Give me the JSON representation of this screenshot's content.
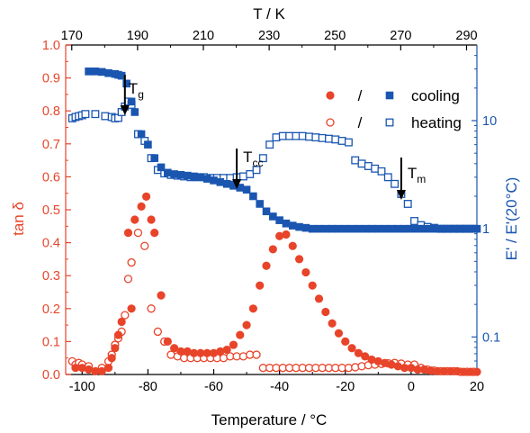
{
  "chart_data": {
    "type": "scatter",
    "x_axis": {
      "label": "Temperature / °C",
      "range": [
        -105,
        20
      ],
      "ticks": [
        -100,
        -80,
        -60,
        -40,
        -20,
        0,
        20
      ],
      "tick_labels": [
        "-100",
        "-80",
        "-60",
        "-40",
        "-20",
        "0",
        "20"
      ]
    },
    "top_axis": {
      "label": "T / K",
      "ticks": [
        170,
        190,
        210,
        230,
        250,
        270,
        290
      ],
      "tick_labels": [
        "170",
        "190",
        "210",
        "230",
        "250",
        "270",
        "290"
      ]
    },
    "left_axis": {
      "label": "tan δ",
      "range": [
        0,
        1.0
      ],
      "ticks": [
        0,
        0.1,
        0.2,
        0.3,
        0.4,
        0.5,
        0.6,
        0.7,
        0.8,
        0.9,
        1.0
      ],
      "tick_labels": [
        "0.0",
        "0.1",
        "0.2",
        "0.3",
        "0.4",
        "0.5",
        "0.6",
        "0.7",
        "0.8",
        "0.9",
        "1.0"
      ],
      "color": "#e8442a"
    },
    "right_axis": {
      "label": "E' / E'(20°C)",
      "scale": "log",
      "range": [
        0.045,
        50
      ],
      "ticks": [
        0.1,
        1,
        10
      ],
      "tick_labels": [
        "0.1",
        "1",
        "10"
      ],
      "color": "#1a56b0"
    },
    "legend": {
      "placement": "top-right",
      "separator": "/",
      "entries": [
        "cooling",
        "heating"
      ]
    },
    "annotations": [
      {
        "base": "T",
        "sub": "g",
        "x": -87
      },
      {
        "base": "T",
        "sub": "cc",
        "x": -53
      },
      {
        "base": "T",
        "sub": "m",
        "x": -3
      }
    ],
    "series": [
      {
        "axis": "left",
        "marker": "filled-circle",
        "color": "#e8442a",
        "points": [
          [
            -102,
            0.02
          ],
          [
            -100,
            0.02
          ],
          [
            -98,
            0.015
          ],
          [
            -96,
            0.01
          ],
          [
            -94,
            0.01
          ],
          [
            -92,
            0.02
          ],
          [
            -91,
            0.05
          ],
          [
            -90,
            0.08
          ],
          [
            -89,
            0.12
          ],
          [
            -88,
            0.16
          ],
          [
            -86,
            0.43
          ],
          [
            -85,
            0.2
          ],
          [
            -84,
            0.47
          ],
          [
            -82,
            0.51
          ],
          [
            -80.5,
            0.54
          ],
          [
            -79,
            0.47
          ],
          [
            -78,
            0.43
          ],
          [
            -76,
            0.24
          ],
          [
            -74,
            0.1
          ],
          [
            -72,
            0.08
          ],
          [
            -70,
            0.07
          ],
          [
            -68,
            0.07
          ],
          [
            -66,
            0.065
          ],
          [
            -64,
            0.065
          ],
          [
            -62,
            0.065
          ],
          [
            -60,
            0.065
          ],
          [
            -58,
            0.07
          ],
          [
            -56,
            0.075
          ],
          [
            -54,
            0.09
          ],
          [
            -52,
            0.12
          ],
          [
            -50,
            0.15
          ],
          [
            -48,
            0.2
          ],
          [
            -46,
            0.27
          ],
          [
            -44,
            0.33
          ],
          [
            -42,
            0.38
          ],
          [
            -40,
            0.42
          ],
          [
            -38,
            0.425
          ],
          [
            -36,
            0.39
          ],
          [
            -34,
            0.35
          ],
          [
            -32,
            0.31
          ],
          [
            -30,
            0.27
          ],
          [
            -28,
            0.23
          ],
          [
            -26,
            0.19
          ],
          [
            -24,
            0.155
          ],
          [
            -22,
            0.125
          ],
          [
            -20,
            0.1
          ],
          [
            -18,
            0.08
          ],
          [
            -16,
            0.065
          ],
          [
            -14,
            0.055
          ],
          [
            -12,
            0.045
          ],
          [
            -10,
            0.04
          ],
          [
            -8,
            0.035
          ],
          [
            -6,
            0.03
          ],
          [
            -4,
            0.025
          ],
          [
            -2,
            0.02
          ],
          [
            0,
            0.02
          ],
          [
            2,
            0.015
          ],
          [
            4,
            0.015
          ],
          [
            6,
            0.012
          ],
          [
            8,
            0.01
          ],
          [
            10,
            0.01
          ],
          [
            12,
            0.01
          ],
          [
            14,
            0.01
          ],
          [
            16,
            0.008
          ],
          [
            18,
            0.008
          ],
          [
            20,
            0.008
          ]
        ]
      },
      {
        "axis": "left",
        "marker": "open-circle",
        "color": "#e8442a",
        "points": [
          [
            -103,
            0.04
          ],
          [
            -102,
            0.03
          ],
          [
            -101,
            0.035
          ],
          [
            -100,
            0.03
          ],
          [
            -98,
            0.025
          ],
          [
            -94,
            0.02
          ],
          [
            -92,
            0.04
          ],
          [
            -91,
            0.06
          ],
          [
            -90,
            0.09
          ],
          [
            -89,
            0.11
          ],
          [
            -88,
            0.13
          ],
          [
            -87,
            0.18
          ],
          [
            -86,
            0.29
          ],
          [
            -85,
            0.34
          ],
          [
            -83,
            0.43
          ],
          [
            -81,
            0.39
          ],
          [
            -79,
            0.2
          ],
          [
            -77,
            0.13
          ],
          [
            -75,
            0.1
          ],
          [
            -73,
            0.06
          ],
          [
            -71,
            0.055
          ],
          [
            -69,
            0.05
          ],
          [
            -67,
            0.05
          ],
          [
            -65,
            0.05
          ],
          [
            -63,
            0.05
          ],
          [
            -61,
            0.05
          ],
          [
            -59,
            0.05
          ],
          [
            -57,
            0.05
          ],
          [
            -55,
            0.055
          ],
          [
            -53,
            0.055
          ],
          [
            -51,
            0.055
          ],
          [
            -49,
            0.06
          ],
          [
            -47,
            0.06
          ],
          [
            -45,
            0.02
          ],
          [
            -43,
            0.02
          ],
          [
            -41,
            0.02
          ],
          [
            -39,
            0.02
          ],
          [
            -37,
            0.02
          ],
          [
            -35,
            0.02
          ],
          [
            -33,
            0.02
          ],
          [
            -31,
            0.02
          ],
          [
            -29,
            0.02
          ],
          [
            -27,
            0.02
          ],
          [
            -25,
            0.02
          ],
          [
            -23,
            0.02
          ],
          [
            -21,
            0.02
          ],
          [
            -19,
            0.02
          ],
          [
            -17,
            0.022
          ],
          [
            -15,
            0.025
          ],
          [
            -13,
            0.028
          ],
          [
            -11,
            0.03
          ],
          [
            -9,
            0.032
          ],
          [
            -7,
            0.034
          ],
          [
            -5,
            0.035
          ],
          [
            -3,
            0.033
          ],
          [
            -1,
            0.03
          ],
          [
            1,
            0.03
          ],
          [
            3,
            0.02
          ],
          [
            5,
            0.015
          ],
          [
            7,
            0.012
          ],
          [
            9,
            0.01
          ],
          [
            11,
            0.01
          ],
          [
            13,
            0.01
          ],
          [
            15,
            0.008
          ],
          [
            17,
            0.008
          ],
          [
            19,
            0.008
          ]
        ]
      },
      {
        "axis": "right",
        "marker": "filled-square",
        "color": "#1a56b0",
        "points": [
          [
            -98,
            28.5
          ],
          [
            -96,
            28.5
          ],
          [
            -94,
            28.2
          ],
          [
            -92,
            27.5
          ],
          [
            -90,
            27
          ],
          [
            -89,
            26.5
          ],
          [
            -88,
            26
          ],
          [
            -86.5,
            22
          ],
          [
            -85,
            15
          ],
          [
            -84,
            12
          ],
          [
            -82,
            7.5
          ],
          [
            -80,
            6
          ],
          [
            -78,
            4.5
          ],
          [
            -76,
            3.7
          ],
          [
            -74,
            3.3
          ],
          [
            -72,
            3.2
          ],
          [
            -70,
            3.15
          ],
          [
            -68,
            3.1
          ],
          [
            -66,
            3.05
          ],
          [
            -64,
            3.0
          ],
          [
            -62,
            2.9
          ],
          [
            -60,
            2.8
          ],
          [
            -58,
            2.7
          ],
          [
            -56,
            2.6
          ],
          [
            -54,
            2.5
          ],
          [
            -52,
            2.4
          ],
          [
            -50,
            2.3
          ],
          [
            -48,
            2.0
          ],
          [
            -46,
            1.7
          ],
          [
            -44,
            1.45
          ],
          [
            -42,
            1.3
          ],
          [
            -40,
            1.2
          ],
          [
            -38,
            1.12
          ],
          [
            -36,
            1.07
          ],
          [
            -34,
            1.04
          ],
          [
            -32,
            1.02
          ],
          [
            -30,
            1.0
          ],
          [
            -28,
            1.0
          ],
          [
            -26,
            1.0
          ],
          [
            -24,
            1.0
          ],
          [
            -22,
            1.0
          ],
          [
            -20,
            1.0
          ],
          [
            -18,
            1.0
          ],
          [
            -16,
            1.0
          ],
          [
            -14,
            1.0
          ],
          [
            -12,
            1.0
          ],
          [
            -10,
            1.0
          ],
          [
            -8,
            1.0
          ],
          [
            -6,
            1.0
          ],
          [
            -4,
            1.0
          ],
          [
            -2,
            1.0
          ],
          [
            0,
            1.0
          ],
          [
            2,
            1.0
          ],
          [
            4,
            1.0
          ],
          [
            6,
            1.0
          ],
          [
            8,
            1.0
          ],
          [
            10,
            1.0
          ],
          [
            12,
            1.0
          ],
          [
            14,
            1.0
          ],
          [
            16,
            1.0
          ],
          [
            18,
            1.0
          ],
          [
            20,
            1.0
          ]
        ]
      },
      {
        "axis": "right",
        "marker": "open-square",
        "color": "#1a56b0",
        "points": [
          [
            -103,
            10.5
          ],
          [
            -102,
            10.8
          ],
          [
            -101,
            11
          ],
          [
            -100,
            11.2
          ],
          [
            -99,
            11.5
          ],
          [
            -96,
            11.5
          ],
          [
            -93,
            11.0
          ],
          [
            -91,
            10.8
          ],
          [
            -90,
            10.5
          ],
          [
            -89,
            10.6
          ],
          [
            -88,
            12
          ],
          [
            -87,
            13.5
          ],
          [
            -86,
            15
          ],
          [
            -85,
            14
          ],
          [
            -83,
            7.5
          ],
          [
            -81,
            6.5
          ],
          [
            -79,
            4.5
          ],
          [
            -77,
            3.5
          ],
          [
            -75,
            3.25
          ],
          [
            -73,
            3.15
          ],
          [
            -71,
            3.1
          ],
          [
            -69,
            3.05
          ],
          [
            -67,
            3.0
          ],
          [
            -65,
            3.0
          ],
          [
            -63,
            3.0
          ],
          [
            -61,
            2.95
          ],
          [
            -59,
            2.95
          ],
          [
            -57,
            2.95
          ],
          [
            -55,
            2.95
          ],
          [
            -53,
            3.0
          ],
          [
            -51,
            3.05
          ],
          [
            -49,
            3.2
          ],
          [
            -47,
            3.5
          ],
          [
            -45,
            4.5
          ],
          [
            -43,
            6.0
          ],
          [
            -41,
            7.0
          ],
          [
            -39,
            7.2
          ],
          [
            -37,
            7.2
          ],
          [
            -35,
            7.2
          ],
          [
            -33,
            7.2
          ],
          [
            -31,
            7.1
          ],
          [
            -29,
            7.0
          ],
          [
            -27,
            6.9
          ],
          [
            -25,
            6.8
          ],
          [
            -23,
            6.7
          ],
          [
            -21,
            6.5
          ],
          [
            -19,
            6.3
          ],
          [
            -17,
            4.3
          ],
          [
            -15,
            4.0
          ],
          [
            -13,
            3.8
          ],
          [
            -11,
            3.6
          ],
          [
            -9,
            3.4
          ],
          [
            -7,
            3.0
          ],
          [
            -5,
            2.6
          ],
          [
            -3,
            2.1
          ],
          [
            -1,
            1.7
          ],
          [
            1,
            1.18
          ],
          [
            3,
            1.08
          ],
          [
            5,
            1.04
          ],
          [
            7,
            1.02
          ],
          [
            9,
            1.0
          ],
          [
            11,
            1.0
          ],
          [
            13,
            1.0
          ],
          [
            15,
            1.0
          ],
          [
            17,
            1.0
          ],
          [
            19,
            1.0
          ]
        ]
      }
    ]
  }
}
